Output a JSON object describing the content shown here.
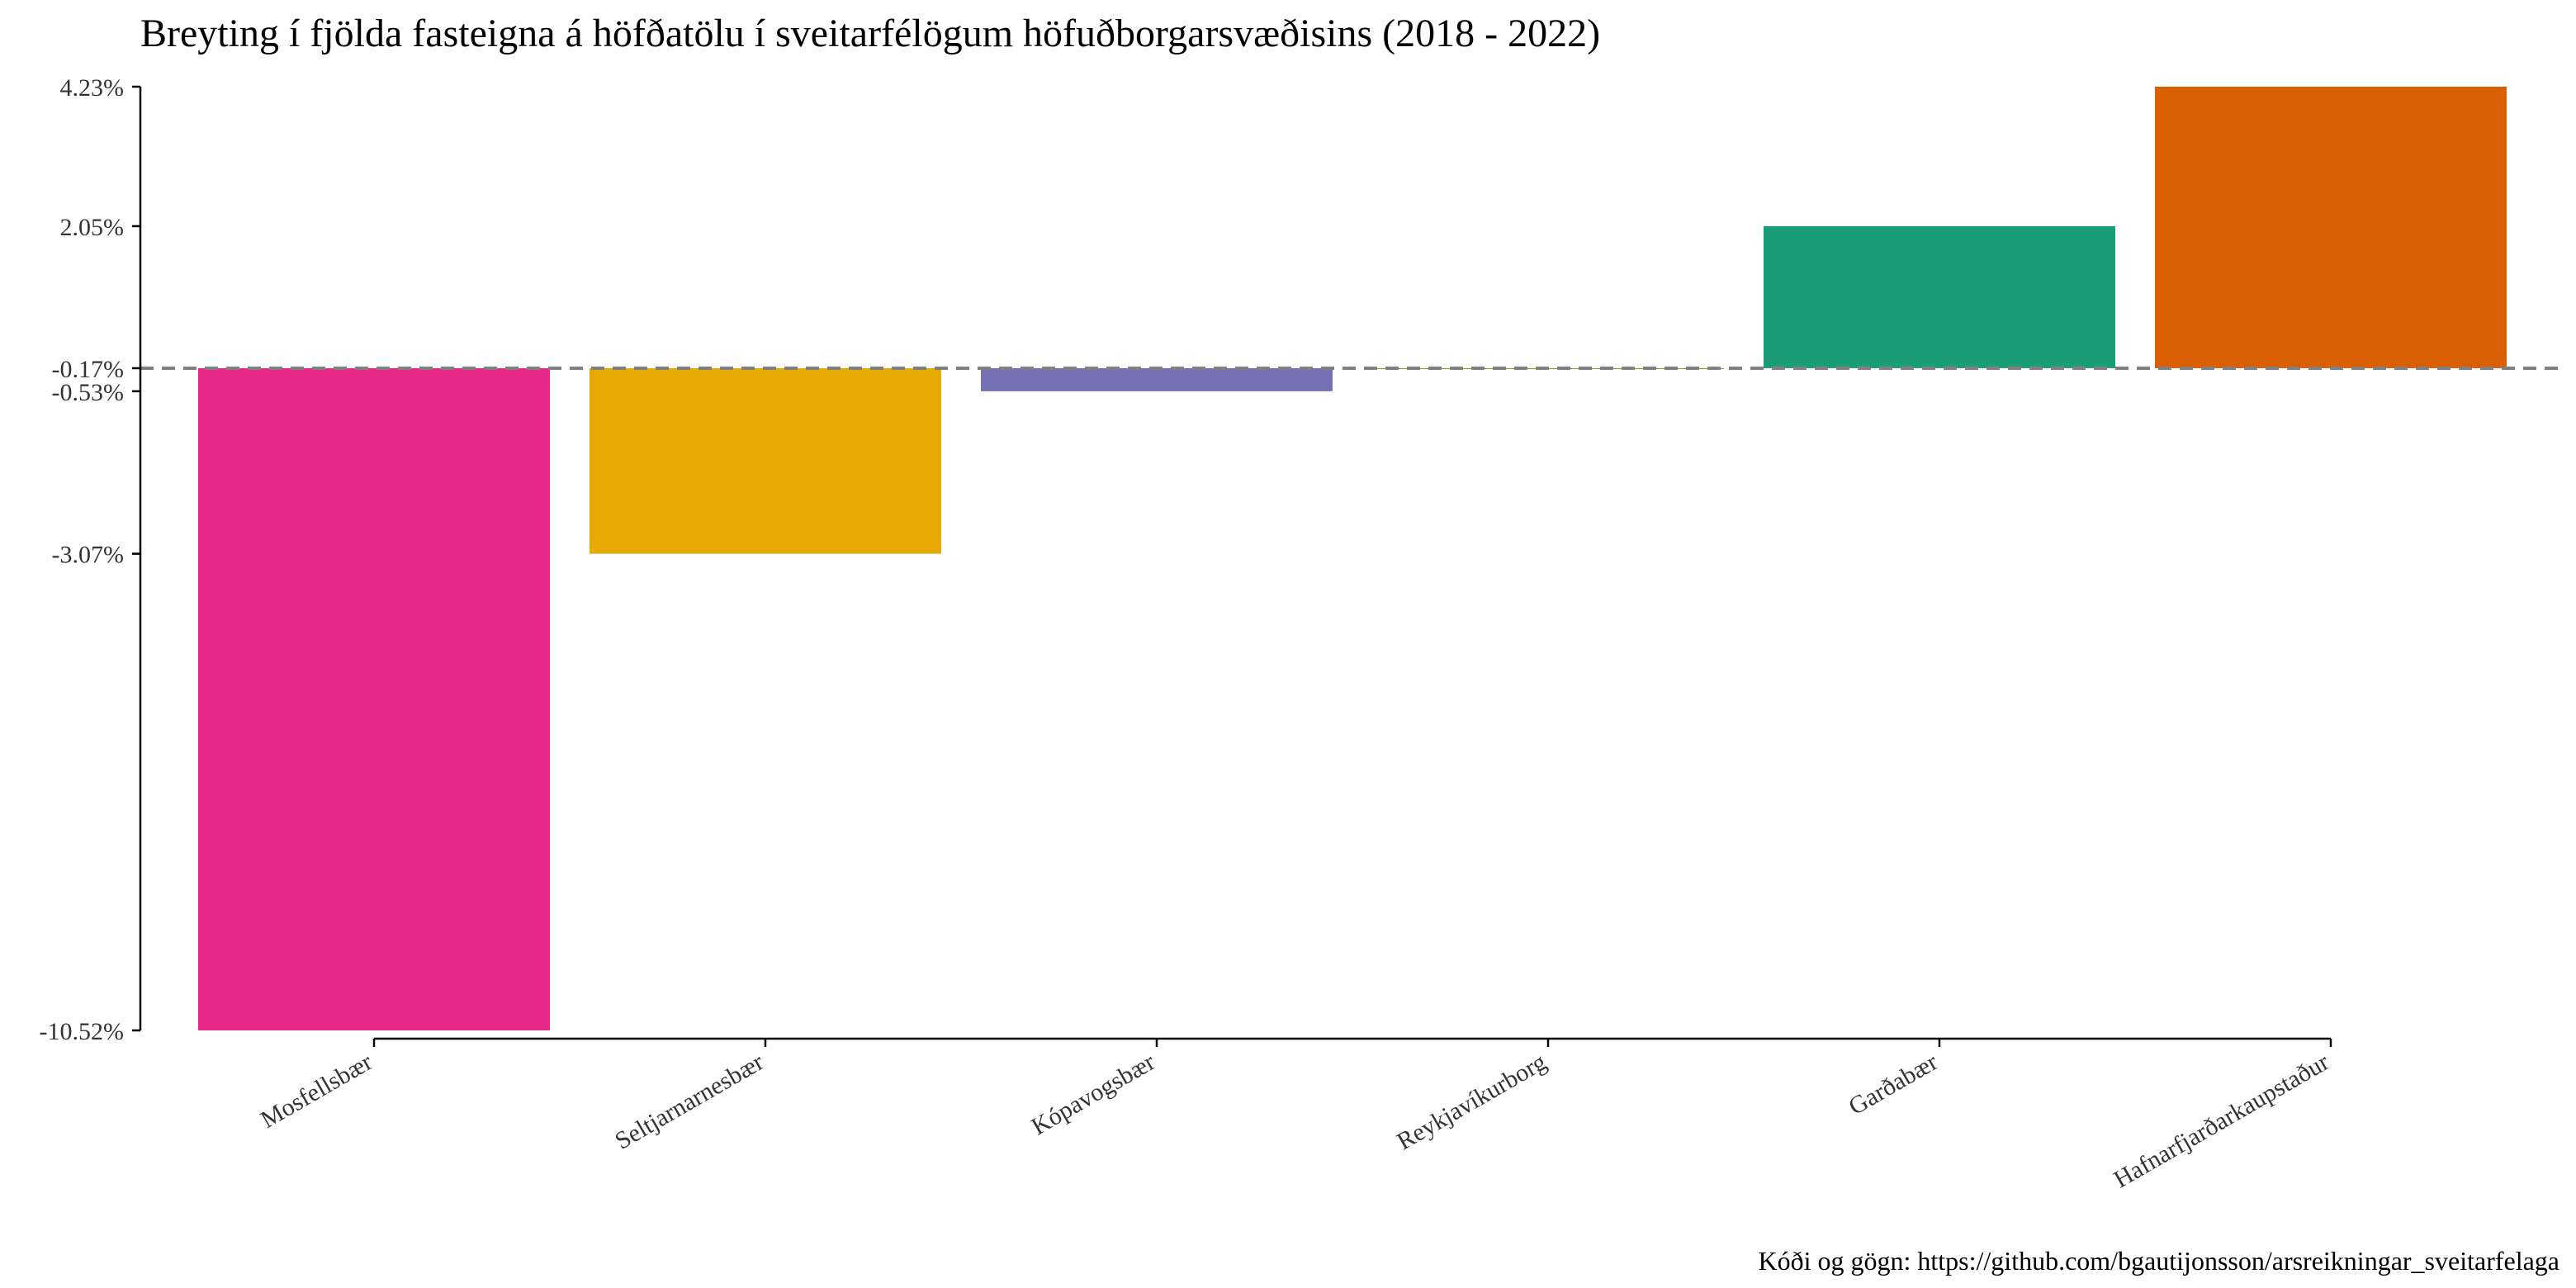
{
  "chart_data": {
    "type": "bar",
    "title": "Breyting í fjölda fasteigna á höfðatölu í sveitarfélögum höfuðborgarsvæðisins (2018 - 2022)",
    "caption": "Kóði og gögn: https://github.com/bgautijonsson/arsreikningar_sveitarfelaga",
    "xlabel": "",
    "ylabel": "",
    "categories": [
      "Mosfellsbær",
      "Seltjarnarnesbær",
      "Kópavogsbær",
      "Reykjavíkurborg",
      "Garðabær",
      "Hafnarfjarðarkaupstaður"
    ],
    "values": [
      -10.52,
      -3.07,
      -0.53,
      -0.17,
      2.05,
      4.23
    ],
    "value_labels": [
      "-10.52%",
      "-3.07%",
      "-0.53%",
      "-0.17%",
      "2.05%",
      "4.23%"
    ],
    "colors": [
      "#e7298a",
      "#e6ab02",
      "#7570b3",
      "#66a61e",
      "#1b9e77",
      "#d95f02"
    ],
    "y_ticks": [
      4.23,
      2.05,
      -0.17,
      -0.53,
      -3.07,
      -10.52
    ],
    "y_tick_labels": [
      "4.23%",
      "2.05%",
      "-0.17%",
      "-0.53%",
      "-3.07%",
      "-10.52%"
    ],
    "reference_line": -0.17,
    "ylim": [
      -10.52,
      4.23
    ],
    "grid": false,
    "legend": "none"
  }
}
